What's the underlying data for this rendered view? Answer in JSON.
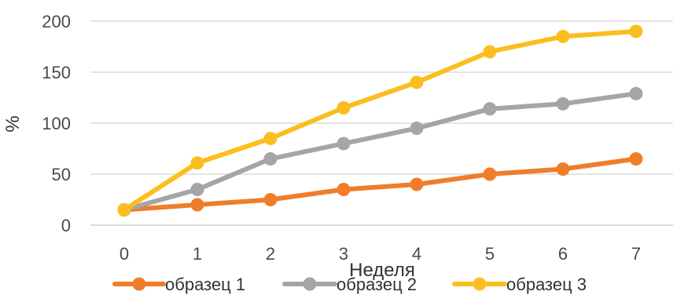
{
  "chart_data": {
    "type": "line",
    "title": "",
    "xlabel": "Неделя",
    "ylabel": "%",
    "x": [
      0,
      1,
      2,
      3,
      4,
      5,
      6,
      7
    ],
    "ylim": [
      0,
      200
    ],
    "yticks": [
      0,
      50,
      100,
      150,
      200
    ],
    "grid": true,
    "legend": "bottom",
    "series": [
      {
        "name": "образец 1",
        "color": "#F07D2A",
        "values": [
          15,
          20,
          25,
          35,
          40,
          50,
          55,
          65
        ]
      },
      {
        "name": "образец 2",
        "color": "#A5A5A5",
        "values": [
          15,
          35,
          65,
          80,
          95,
          114,
          119,
          129
        ]
      },
      {
        "name": "образец 3",
        "color": "#FCBE1F",
        "values": [
          15,
          61,
          85,
          115,
          140,
          170,
          185,
          190
        ]
      }
    ]
  }
}
